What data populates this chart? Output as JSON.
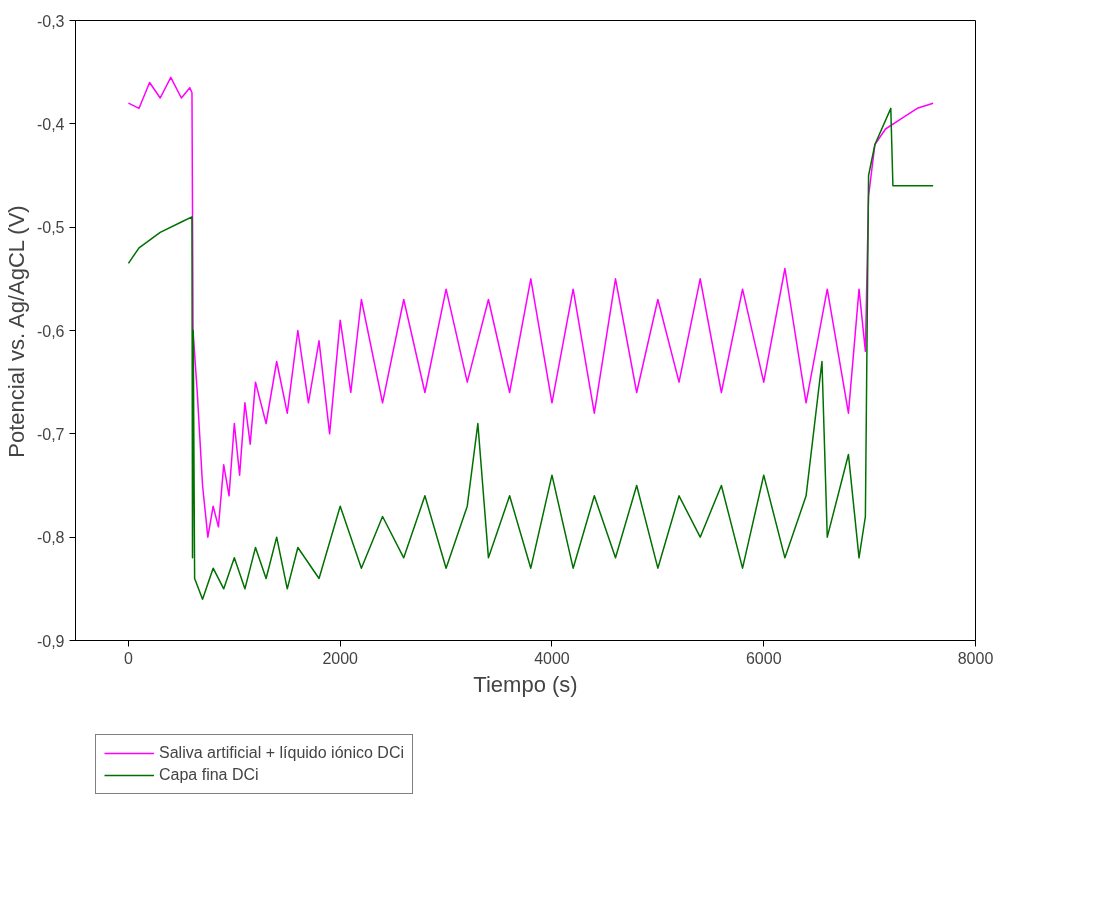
{
  "chart_data": {
    "type": "line",
    "xlabel": "Tiempo (s)",
    "ylabel": "Potencial vs. Ag/AgCL (V)",
    "xlim": [
      -500,
      8000
    ],
    "xticks": [
      0,
      2000,
      4000,
      6000,
      8000
    ],
    "ylim": [
      -0.9,
      -0.3
    ],
    "yticks": [
      {
        "value": -0.9,
        "label": "-0,9"
      },
      {
        "value": -0.8,
        "label": "-0,8"
      },
      {
        "value": -0.7,
        "label": "-0,7"
      },
      {
        "value": -0.6,
        "label": "-0,6"
      },
      {
        "value": -0.5,
        "label": "-0,5"
      },
      {
        "value": -0.4,
        "label": "-0,4"
      },
      {
        "value": -0.3,
        "label": "-0,3"
      }
    ],
    "grid": false,
    "legend": "bottom",
    "marker": "none",
    "line_style": "solid",
    "series": [
      {
        "name": "Saliva artificial + líquido iónico DCi",
        "color": "#ff00ff",
        "x": [
          0,
          100,
          200,
          300,
          400,
          500,
          580,
          600,
          610,
          650,
          700,
          750,
          800,
          850,
          900,
          950,
          1000,
          1050,
          1100,
          1150,
          1200,
          1300,
          1400,
          1500,
          1600,
          1700,
          1800,
          1900,
          2000,
          2100,
          2200,
          2400,
          2600,
          2800,
          3000,
          3200,
          3400,
          3600,
          3800,
          4000,
          4200,
          4400,
          4600,
          4800,
          5000,
          5200,
          5400,
          5600,
          5800,
          6000,
          6200,
          6400,
          6600,
          6800,
          6900,
          6960,
          6990,
          7050,
          7150,
          7300,
          7450,
          7600
        ],
        "values": [
          -0.38,
          -0.385,
          -0.36,
          -0.375,
          -0.355,
          -0.375,
          -0.365,
          -0.37,
          -0.6,
          -0.66,
          -0.75,
          -0.8,
          -0.77,
          -0.79,
          -0.73,
          -0.76,
          -0.69,
          -0.74,
          -0.67,
          -0.71,
          -0.65,
          -0.69,
          -0.63,
          -0.68,
          -0.6,
          -0.67,
          -0.61,
          -0.7,
          -0.59,
          -0.66,
          -0.57,
          -0.67,
          -0.57,
          -0.66,
          -0.56,
          -0.65,
          -0.57,
          -0.66,
          -0.55,
          -0.67,
          -0.56,
          -0.68,
          -0.55,
          -0.66,
          -0.57,
          -0.65,
          -0.55,
          -0.66,
          -0.56,
          -0.65,
          -0.54,
          -0.67,
          -0.56,
          -0.68,
          -0.56,
          -0.62,
          -0.47,
          -0.42,
          -0.405,
          -0.395,
          -0.385,
          -0.38
        ]
      },
      {
        "name": "Capa fina DCi",
        "color": "#007000",
        "x": [
          0,
          100,
          300,
          500,
          600,
          605,
          612,
          625,
          700,
          800,
          900,
          1000,
          1100,
          1200,
          1300,
          1400,
          1500,
          1600,
          1800,
          2000,
          2200,
          2400,
          2600,
          2800,
          3000,
          3200,
          3300,
          3400,
          3600,
          3800,
          4000,
          4200,
          4400,
          4600,
          4800,
          5000,
          5200,
          5400,
          5600,
          5800,
          6000,
          6200,
          6400,
          6550,
          6600,
          6800,
          6900,
          6960,
          6990,
          7050,
          7200,
          7220,
          7400,
          7600
        ],
        "values": [
          -0.535,
          -0.52,
          -0.505,
          -0.495,
          -0.49,
          -0.82,
          -0.6,
          -0.84,
          -0.86,
          -0.83,
          -0.85,
          -0.82,
          -0.85,
          -0.81,
          -0.84,
          -0.8,
          -0.85,
          -0.81,
          -0.84,
          -0.77,
          -0.83,
          -0.78,
          -0.82,
          -0.76,
          -0.83,
          -0.77,
          -0.69,
          -0.82,
          -0.76,
          -0.83,
          -0.74,
          -0.83,
          -0.76,
          -0.82,
          -0.75,
          -0.83,
          -0.76,
          -0.8,
          -0.75,
          -0.83,
          -0.74,
          -0.82,
          -0.76,
          -0.63,
          -0.8,
          -0.72,
          -0.82,
          -0.78,
          -0.45,
          -0.42,
          -0.385,
          -0.46,
          -0.46,
          -0.46
        ]
      }
    ]
  }
}
